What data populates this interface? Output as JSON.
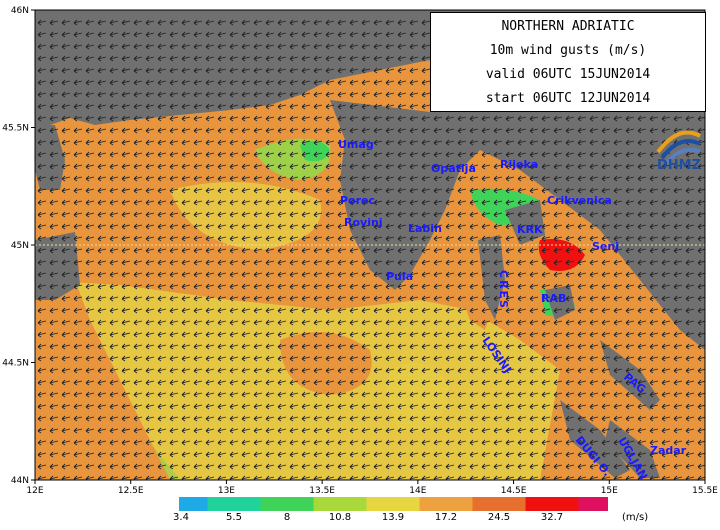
{
  "title": {
    "line1": "NORTHERN ADRIATIC",
    "line2": "10m wind gusts (m/s)",
    "line3": "valid 06UTC 15JUN2014",
    "line4": "start 06UTC 12JUN2014"
  },
  "logo": {
    "icon": "dhmz-logo-icon",
    "text": "DHMZ"
  },
  "axes": {
    "x_ticks": [
      "12E",
      "12.5E",
      "13E",
      "13.5E",
      "14E",
      "14.5E",
      "15E",
      "15.5E"
    ],
    "y_ticks": [
      "46N",
      "45.5N",
      "45N",
      "44.5N",
      "44N"
    ]
  },
  "places": [
    {
      "name": "Umag"
    },
    {
      "name": "Porec"
    },
    {
      "name": "Rovinj"
    },
    {
      "name": "Pula"
    },
    {
      "name": "Labin"
    },
    {
      "name": "Opatija"
    },
    {
      "name": "Rijeka"
    },
    {
      "name": "Crikvenica"
    },
    {
      "name": "KRK"
    },
    {
      "name": "Senj"
    },
    {
      "name": "RAB"
    },
    {
      "name": "Zadar"
    }
  ],
  "islands": [
    "CRES",
    "LOSINJ",
    "PAG",
    "UGLJAN",
    "DUGI O."
  ],
  "legend": {
    "labels": [
      "3.4",
      "5.5",
      "8",
      "10.8",
      "13.9",
      "17.2",
      "24.5",
      "32.7"
    ],
    "units": "(m/s)",
    "colors": [
      "#1fa9e6",
      "#1fd39a",
      "#3fd35a",
      "#a9d83a",
      "#e8d640",
      "#eda13f",
      "#e8702e",
      "#f01010",
      "#e01060"
    ]
  },
  "colors": {
    "land": "#707070",
    "sea_orange": "#e9953d",
    "sea_yellow": "#e6cc45",
    "sea_green": "#9ed04a"
  }
}
